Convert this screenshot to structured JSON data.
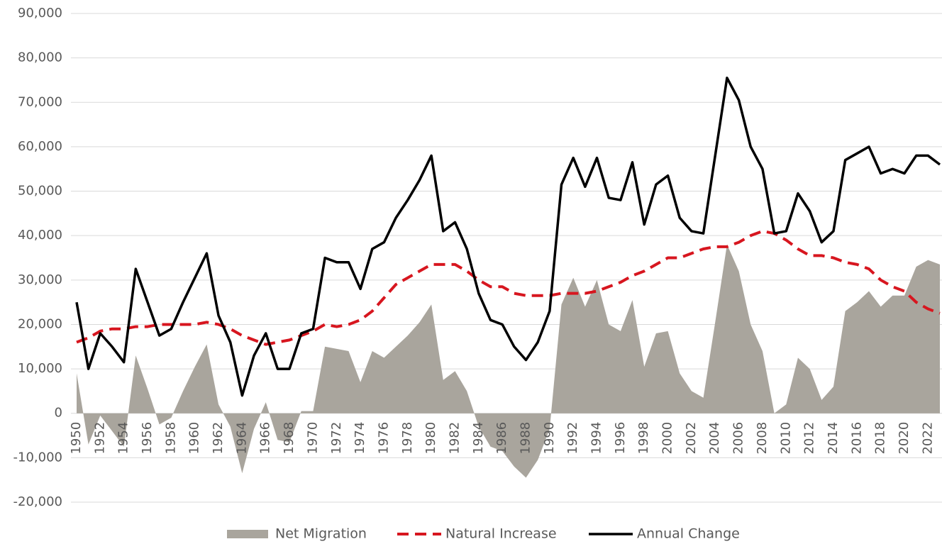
{
  "chart_data": {
    "type": "line",
    "x": [
      1950,
      1951,
      1952,
      1953,
      1954,
      1955,
      1956,
      1957,
      1958,
      1959,
      1960,
      1961,
      1962,
      1963,
      1964,
      1965,
      1966,
      1967,
      1968,
      1969,
      1970,
      1971,
      1972,
      1973,
      1974,
      1975,
      1976,
      1977,
      1978,
      1979,
      1980,
      1981,
      1982,
      1983,
      1984,
      1985,
      1986,
      1987,
      1988,
      1989,
      1990,
      1991,
      1992,
      1993,
      1994,
      1995,
      1996,
      1997,
      1998,
      1999,
      2000,
      2001,
      2002,
      2003,
      2004,
      2005,
      2006,
      2007,
      2008,
      2009,
      2010,
      2011,
      2012,
      2013,
      2014,
      2015,
      2016,
      2017,
      2018,
      2019,
      2020,
      2021,
      2022,
      2023
    ],
    "series": [
      {
        "name": "Net Migration",
        "kind": "area",
        "color": "#a9a59d",
        "values": [
          9000,
          -7000,
          -500,
          -4000,
          -7500,
          13000,
          5500,
          -2500,
          -1000,
          5000,
          10500,
          15500,
          2000,
          -3000,
          -13500,
          -3500,
          2500,
          -6000,
          -6500,
          500,
          500,
          15000,
          14500,
          14000,
          7000,
          14000,
          12500,
          15000,
          17500,
          20500,
          24500,
          7500,
          9500,
          5000,
          -3000,
          -7500,
          -8500,
          -12000,
          -14500,
          -10500,
          -3500,
          24500,
          30500,
          24000,
          30000,
          20000,
          18500,
          25500,
          10500,
          18000,
          18500,
          9000,
          5000,
          3500,
          20500,
          38000,
          32000,
          20000,
          14000,
          0,
          2000,
          12500,
          10000,
          3000,
          6000,
          23000,
          25000,
          27500,
          24000,
          26500,
          26500,
          33000,
          34500,
          33500
        ]
      },
      {
        "name": "Natural Increase",
        "kind": "dashed",
        "color": "#d7161f",
        "values": [
          16000,
          17000,
          18500,
          19000,
          19000,
          19500,
          19500,
          20000,
          20000,
          20000,
          20000,
          20500,
          20000,
          19000,
          17500,
          16500,
          15500,
          16000,
          16500,
          17500,
          18500,
          20000,
          19500,
          20000,
          21000,
          23000,
          26000,
          29000,
          30500,
          32000,
          33500,
          33500,
          33500,
          32000,
          30000,
          28500,
          28500,
          27000,
          26500,
          26500,
          26500,
          27000,
          27000,
          27000,
          27500,
          28500,
          29500,
          31000,
          32000,
          33500,
          35000,
          35000,
          36000,
          37000,
          37500,
          37500,
          38500,
          40000,
          41000,
          40500,
          39000,
          37000,
          35500,
          35500,
          35000,
          34000,
          33500,
          32500,
          30000,
          28500,
          27500,
          25000,
          23500,
          22500
        ]
      },
      {
        "name": "Annual Change",
        "kind": "solid",
        "color": "#000000",
        "values": [
          25000,
          10000,
          18000,
          15000,
          11500,
          32500,
          25000,
          17500,
          19000,
          25000,
          30500,
          36000,
          22000,
          16000,
          4000,
          13000,
          18000,
          10000,
          10000,
          18000,
          19000,
          35000,
          34000,
          34000,
          28000,
          37000,
          38500,
          44000,
          48000,
          52500,
          58000,
          41000,
          43000,
          37000,
          27000,
          21000,
          20000,
          15000,
          12000,
          16000,
          23000,
          51500,
          57500,
          51000,
          57500,
          48500,
          48000,
          56500,
          42500,
          51500,
          53500,
          44000,
          41000,
          40500,
          58000,
          75500,
          70500,
          60000,
          55000,
          40500,
          41000,
          49500,
          45500,
          38500,
          41000,
          57000,
          58500,
          60000,
          54000,
          55000,
          54000,
          58000,
          58000,
          56000
        ]
      }
    ],
    "xlim": [
      1950,
      2023
    ],
    "xticks": [
      1950,
      1952,
      1954,
      1956,
      1958,
      1960,
      1962,
      1964,
      1966,
      1968,
      1970,
      1972,
      1974,
      1976,
      1978,
      1980,
      1982,
      1984,
      1986,
      1988,
      1990,
      1992,
      1994,
      1996,
      1998,
      2000,
      2002,
      2004,
      2006,
      2008,
      2010,
      2012,
      2014,
      2016,
      2018,
      2020,
      2022
    ],
    "ylim": [
      -20000,
      90000
    ],
    "yticks": [
      {
        "value": -20000,
        "label": "-20,000"
      },
      {
        "value": -10000,
        "label": "-10,000"
      },
      0,
      {
        "value": 10000,
        "label": "10,000"
      },
      {
        "value": 20000,
        "label": "20,000"
      },
      {
        "value": 30000,
        "label": "30,000"
      },
      {
        "value": 40000,
        "label": "40,000"
      },
      {
        "value": 50000,
        "label": "50,000"
      },
      {
        "value": 60000,
        "label": "60,000"
      },
      {
        "value": 70000,
        "label": "70,000"
      },
      {
        "value": 80000,
        "label": "80,000"
      },
      {
        "value": 90000,
        "label": "90,000"
      }
    ],
    "grid": true,
    "legend": "bottom"
  }
}
